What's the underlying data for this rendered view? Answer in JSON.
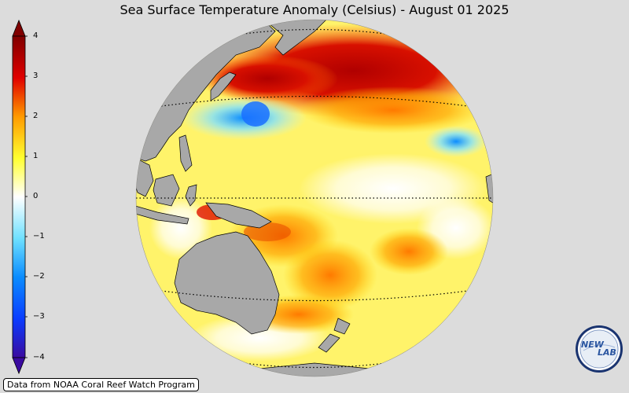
{
  "title": "Sea Surface Temperature Anomaly (Celsius) - August 01 2025",
  "colorbar": {
    "ticks": [
      {
        "value": 4,
        "label": "4"
      },
      {
        "value": 3,
        "label": "3"
      },
      {
        "value": 2,
        "label": "2"
      },
      {
        "value": 1,
        "label": "1"
      },
      {
        "value": 0,
        "label": "0"
      },
      {
        "value": -1,
        "label": "−1"
      },
      {
        "value": -2,
        "label": "−2"
      },
      {
        "value": -3,
        "label": "−3"
      },
      {
        "value": -4,
        "label": "−4"
      }
    ],
    "range": [
      -4,
      4
    ],
    "colors": [
      "#3a0aa0",
      "#0a50ff",
      "#4fc8ff",
      "#ffffff",
      "#ffff40",
      "#ff9a00",
      "#e00000",
      "#800000"
    ]
  },
  "source": "Data from NOAA Coral Reef Watch Program",
  "logo": {
    "left": "NEW",
    "right": "LAB"
  },
  "colors": {
    "land": "#a8a8a8",
    "background": "#dcdcdc"
  }
}
